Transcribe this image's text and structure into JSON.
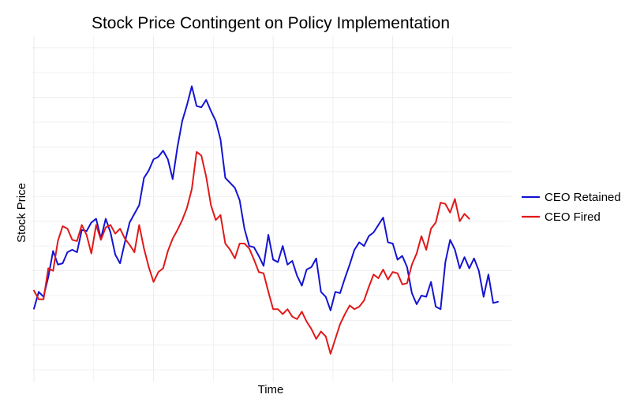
{
  "chart_data": {
    "type": "line",
    "title": "Stock Price Contingent on Policy Implementation",
    "xlabel": "Time",
    "ylabel": "Stock Price",
    "xlim": [
      -0.5,
      99.8
    ],
    "ylim": [
      -2.0,
      12.0
    ],
    "grid": true,
    "axis_tick_labels_visible": false,
    "legend_position": "right",
    "series": [
      {
        "name": "CEO Retained",
        "color": "#1414d2",
        "values": [
          0.97,
          1.65,
          1.45,
          2.25,
          3.3,
          2.75,
          2.8,
          3.25,
          3.35,
          3.25,
          4.15,
          4.1,
          4.45,
          4.6,
          3.8,
          4.6,
          4.05,
          3.15,
          2.8,
          3.65,
          4.45,
          4.8,
          5.15,
          6.25,
          6.55,
          7.0,
          7.1,
          7.35,
          7.0,
          6.2,
          7.5,
          8.55,
          9.2,
          9.95,
          9.15,
          9.1,
          9.4,
          8.95,
          8.55,
          7.8,
          6.25,
          6.05,
          5.85,
          5.35,
          4.2,
          3.5,
          3.45,
          3.1,
          2.7,
          3.95,
          2.95,
          2.85,
          3.5,
          2.75,
          2.9,
          2.3,
          1.9,
          2.55,
          2.65,
          3.0,
          1.65,
          1.45,
          0.9,
          1.65,
          1.6,
          2.2,
          2.75,
          3.35,
          3.65,
          3.5,
          3.9,
          4.05,
          4.35,
          4.65,
          3.65,
          3.6,
          2.95,
          3.1,
          2.65,
          1.6,
          1.15,
          1.5,
          1.45,
          2.05,
          1.05,
          0.95,
          2.85,
          3.75,
          3.35,
          2.6,
          3.05,
          2.6,
          3.0,
          2.5,
          1.45,
          2.35,
          1.2,
          1.25
        ]
      },
      {
        "name": "CEO Fired",
        "color": "#e01919",
        "values": [
          1.7,
          1.35,
          1.35,
          2.6,
          2.5,
          3.7,
          4.3,
          4.2,
          3.75,
          3.7,
          4.35,
          3.95,
          3.2,
          4.35,
          3.75,
          4.25,
          4.35,
          4.0,
          4.2,
          3.8,
          3.55,
          3.25,
          4.35,
          3.4,
          2.65,
          2.05,
          2.45,
          2.6,
          3.3,
          3.8,
          4.15,
          4.55,
          5.05,
          5.8,
          7.3,
          7.15,
          6.3,
          5.15,
          4.55,
          4.75,
          3.6,
          3.35,
          3.0,
          3.6,
          3.6,
          3.4,
          2.95,
          2.45,
          2.4,
          1.65,
          0.95,
          0.95,
          0.75,
          0.95,
          0.65,
          0.55,
          0.85,
          0.45,
          0.15,
          -0.25,
          0.05,
          -0.15,
          -0.85,
          -0.25,
          0.35,
          0.75,
          1.1,
          0.95,
          1.05,
          1.3,
          1.85,
          2.35,
          2.2,
          2.55,
          2.15,
          2.45,
          2.4,
          1.95,
          2.0,
          2.75,
          3.2,
          3.9,
          3.35,
          4.2,
          4.45,
          5.25,
          5.2,
          4.85,
          5.4,
          4.5,
          4.8,
          4.6
        ]
      }
    ]
  }
}
